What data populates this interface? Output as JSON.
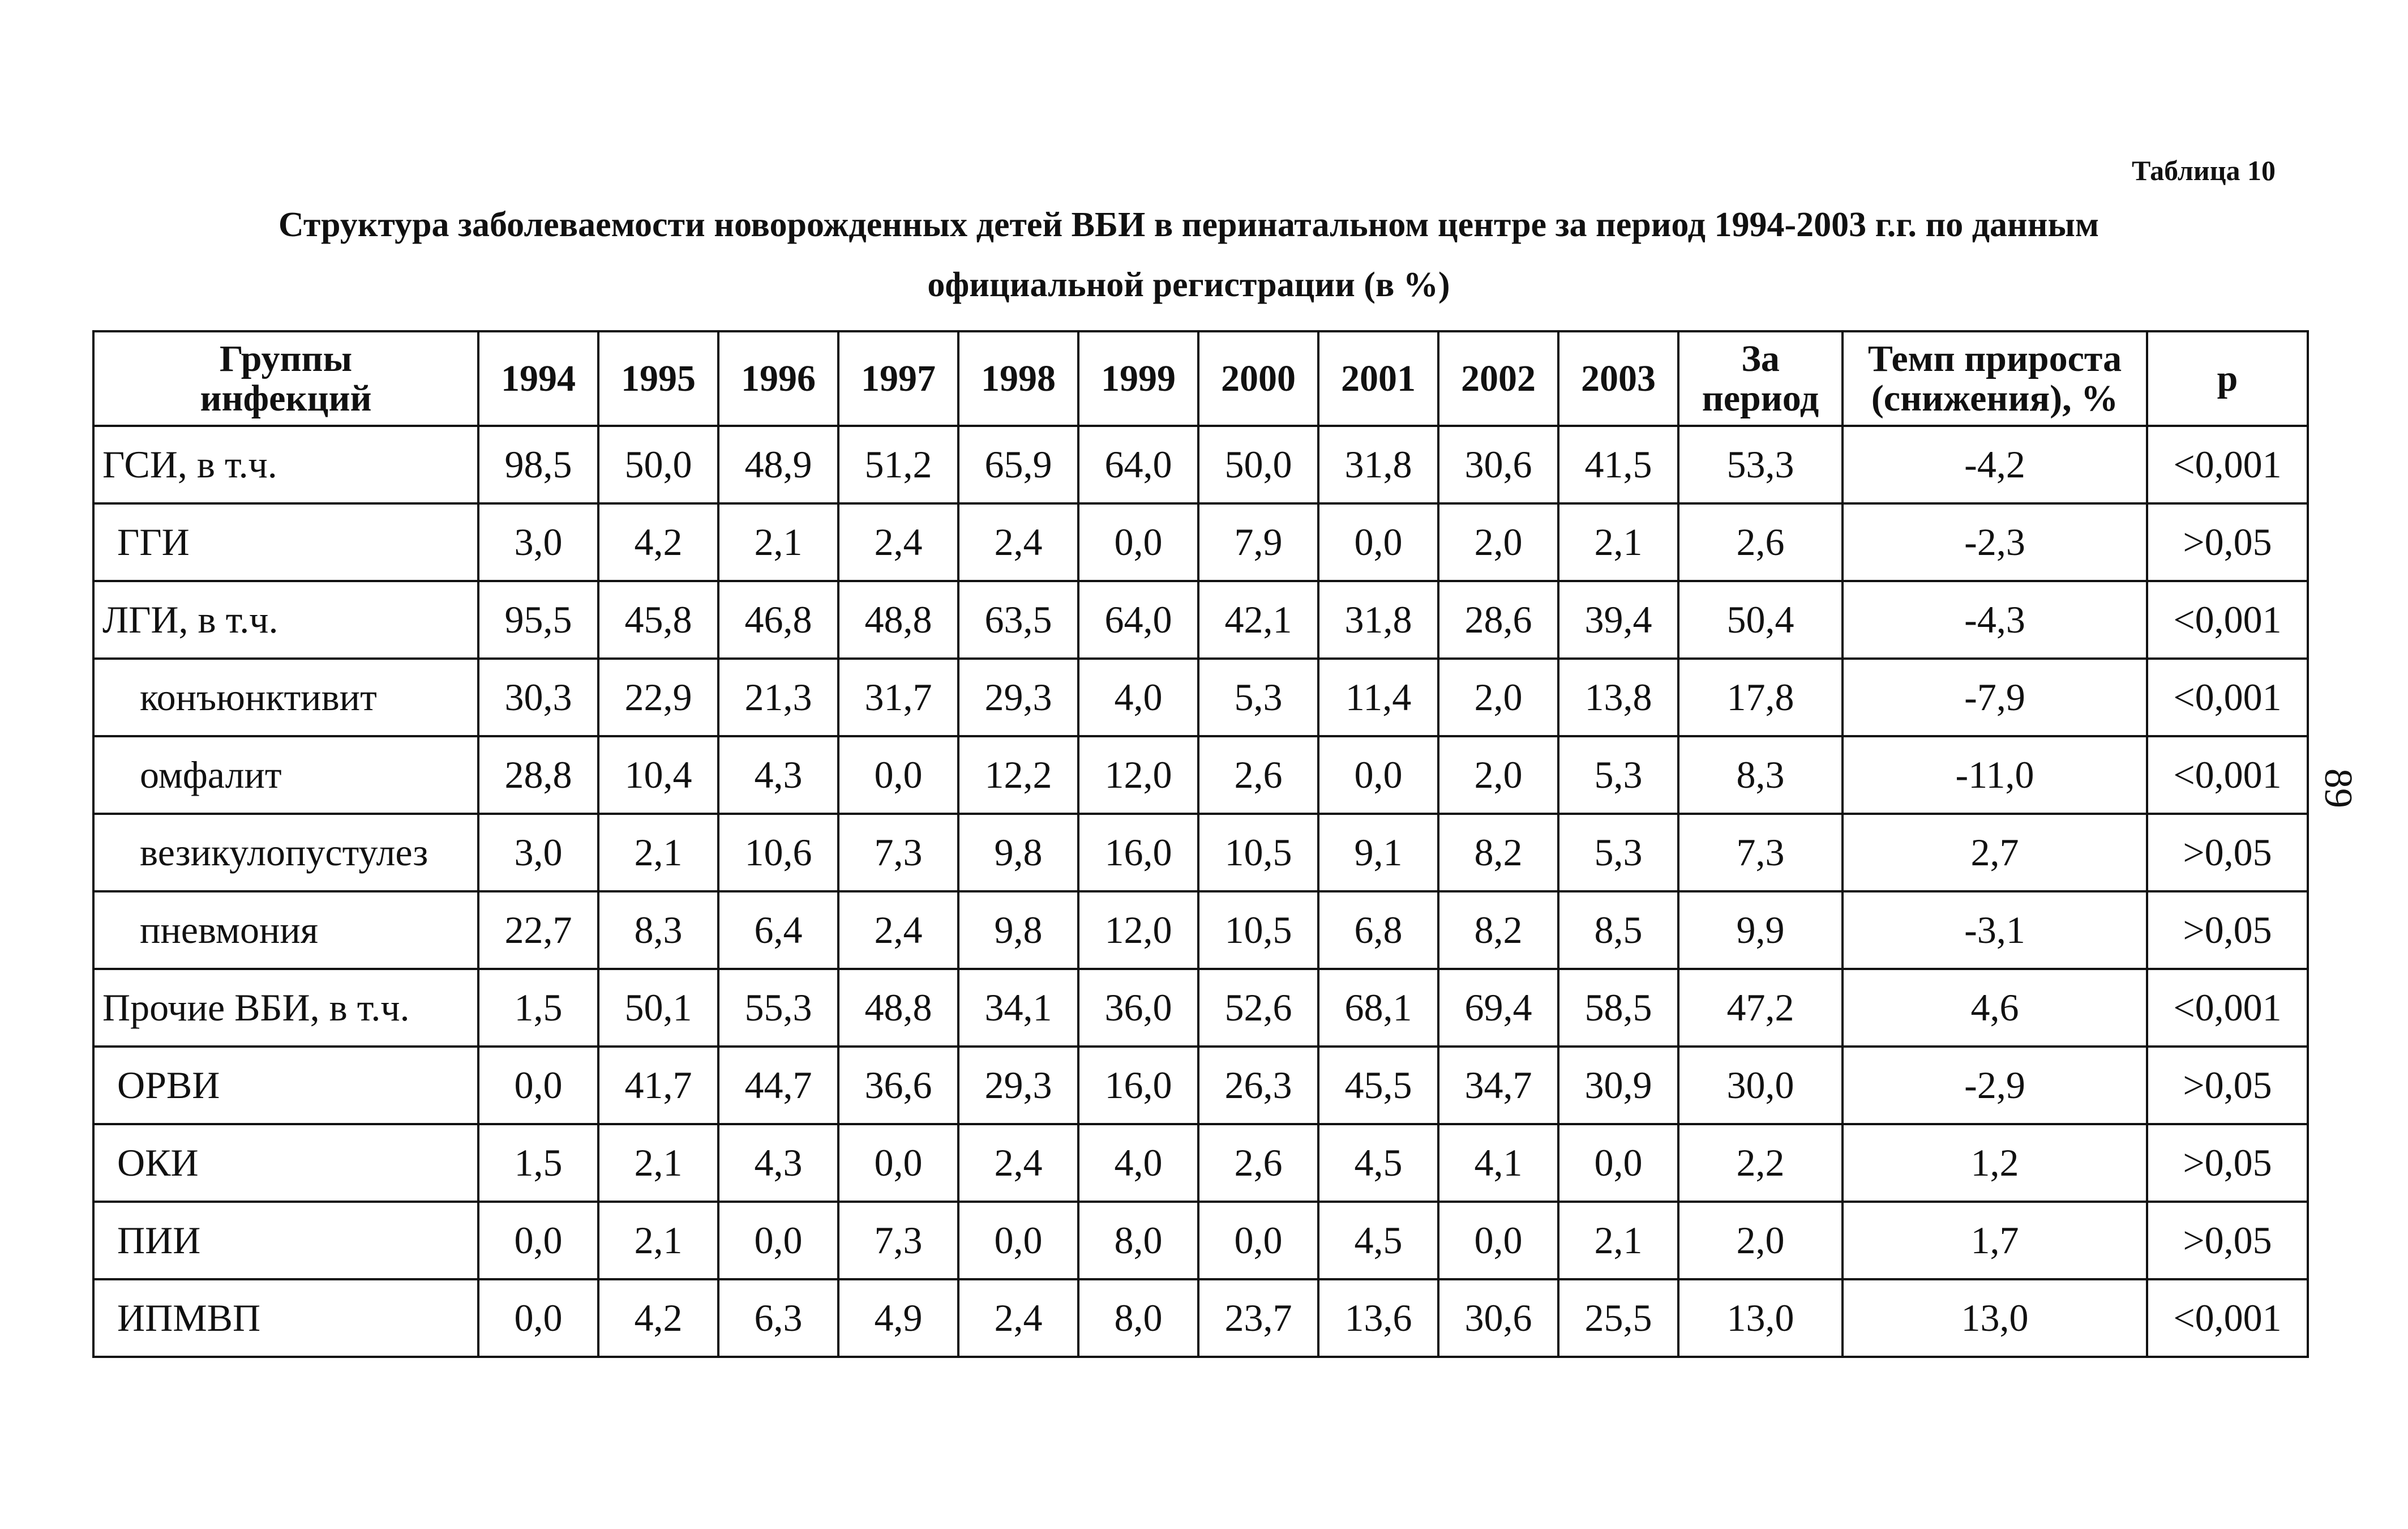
{
  "table_label": "Таблица 10",
  "title_line1": "Структура заболеваемости новорожденных детей ВБИ в перинатальном центре за период 1994-2003 г.г. по данным",
  "title_line2": "официальной регистрации (в %)",
  "page_number": "89",
  "header": {
    "group_line1": "Группы",
    "group_line2": "инфекций",
    "years": [
      "1994",
      "1995",
      "1996",
      "1997",
      "1998",
      "1999",
      "2000",
      "2001",
      "2002",
      "2003"
    ],
    "period_line1": "За",
    "period_line2": "период",
    "rate_line1": "Темп прироста",
    "rate_line2": "(снижения), %",
    "p": "p"
  },
  "rows": [
    {
      "group": "ГСИ, в т.ч.",
      "values": [
        "98,5",
        "50,0",
        "48,9",
        "51,2",
        "65,9",
        "64,0",
        "50,0",
        "31,8",
        "30,6",
        "41,5"
      ],
      "period": "53,3",
      "rate": "-4,2",
      "p": "<0,001"
    },
    {
      "group": "ГГИ",
      "values": [
        "3,0",
        "4,2",
        "2,1",
        "2,4",
        "2,4",
        "0,0",
        "7,9",
        "0,0",
        "2,0",
        "2,1"
      ],
      "period": "2,6",
      "rate": "-2,3",
      "p": ">0,05"
    },
    {
      "group": "ЛГИ, в т.ч.",
      "values": [
        "95,5",
        "45,8",
        "46,8",
        "48,8",
        "63,5",
        "64,0",
        "42,1",
        "31,8",
        "28,6",
        "39,4"
      ],
      "period": "50,4",
      "rate": "-4,3",
      "p": "<0,001"
    },
    {
      "group": "конъюнктивит",
      "values": [
        "30,3",
        "22,9",
        "21,3",
        "31,7",
        "29,3",
        "4,0",
        "5,3",
        "11,4",
        "2,0",
        "13,8"
      ],
      "period": "17,8",
      "rate": "-7,9",
      "p": "<0,001"
    },
    {
      "group": "омфалит",
      "values": [
        "28,8",
        "10,4",
        "4,3",
        "0,0",
        "12,2",
        "12,0",
        "2,6",
        "0,0",
        "2,0",
        "5,3"
      ],
      "period": "8,3",
      "rate": "-11,0",
      "p": "<0,001"
    },
    {
      "group": "везикулопустулез",
      "values": [
        "3,0",
        "2,1",
        "10,6",
        "7,3",
        "9,8",
        "16,0",
        "10,5",
        "9,1",
        "8,2",
        "5,3"
      ],
      "period": "7,3",
      "rate": "2,7",
      "p": ">0,05"
    },
    {
      "group": "пневмония",
      "values": [
        "22,7",
        "8,3",
        "6,4",
        "2,4",
        "9,8",
        "12,0",
        "10,5",
        "6,8",
        "8,2",
        "8,5"
      ],
      "period": "9,9",
      "rate": "-3,1",
      "p": ">0,05"
    },
    {
      "group": "Прочие ВБИ, в т.ч.",
      "values": [
        "1,5",
        "50,1",
        "55,3",
        "48,8",
        "34,1",
        "36,0",
        "52,6",
        "68,1",
        "69,4",
        "58,5"
      ],
      "period": "47,2",
      "rate": "4,6",
      "p": "<0,001"
    },
    {
      "group": "ОРВИ",
      "values": [
        "0,0",
        "41,7",
        "44,7",
        "36,6",
        "29,3",
        "16,0",
        "26,3",
        "45,5",
        "34,7",
        "30,9"
      ],
      "period": "30,0",
      "rate": "-2,9",
      "p": ">0,05"
    },
    {
      "group": "ОКИ",
      "values": [
        "1,5",
        "2,1",
        "4,3",
        "0,0",
        "2,4",
        "4,0",
        "2,6",
        "4,5",
        "4,1",
        "0,0"
      ],
      "period": "2,2",
      "rate": "1,2",
      "p": ">0,05"
    },
    {
      "group": "ПИИ",
      "values": [
        "0,0",
        "2,1",
        "0,0",
        "7,3",
        "0,0",
        "8,0",
        "0,0",
        "4,5",
        "0,0",
        "2,1"
      ],
      "period": "2,0",
      "rate": "1,7",
      "p": ">0,05"
    },
    {
      "group": "ИПМВП",
      "values": [
        "0,0",
        "4,2",
        "6,3",
        "4,9",
        "2,4",
        "8,0",
        "23,7",
        "13,6",
        "30,6",
        "25,5"
      ],
      "period": "13,0",
      "rate": "13,0",
      "p": "<0,001"
    }
  ]
}
